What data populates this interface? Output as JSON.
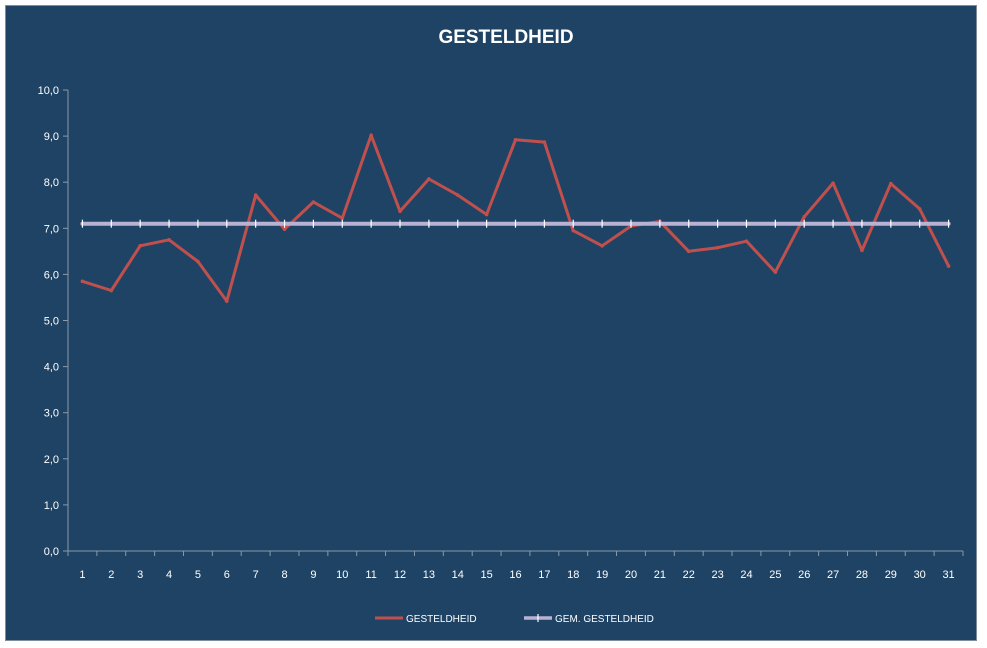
{
  "chart_data": {
    "type": "line",
    "title": "GESTELDHEID",
    "xlabel": "",
    "ylabel": "",
    "x": [
      1,
      2,
      3,
      4,
      5,
      6,
      7,
      8,
      9,
      10,
      11,
      12,
      13,
      14,
      15,
      16,
      17,
      18,
      19,
      20,
      21,
      22,
      23,
      24,
      25,
      26,
      27,
      28,
      29,
      30,
      31
    ],
    "ylim": [
      0,
      10
    ],
    "yticks": [
      "0,0",
      "1,0",
      "2,0",
      "3,0",
      "4,0",
      "5,0",
      "6,0",
      "7,0",
      "8,0",
      "9,0",
      "10,0"
    ],
    "grid": false,
    "legend_position": "bottom",
    "series": [
      {
        "name": "GESTELDHEID",
        "color": "#c0504d",
        "values": [
          5.85,
          5.65,
          6.62,
          6.75,
          6.28,
          5.42,
          7.72,
          6.98,
          7.57,
          7.22,
          9.02,
          7.37,
          8.07,
          7.72,
          7.3,
          8.92,
          8.87,
          6.95,
          6.62,
          7.05,
          7.15,
          6.5,
          6.58,
          6.72,
          6.05,
          7.25,
          7.98,
          6.52,
          7.97,
          7.42,
          6.18
        ]
      },
      {
        "name": "GEM. GESTELDHEID",
        "color": "#b9b2d4",
        "values": [
          7.1,
          7.1,
          7.1,
          7.1,
          7.1,
          7.1,
          7.1,
          7.1,
          7.1,
          7.1,
          7.1,
          7.1,
          7.1,
          7.1,
          7.1,
          7.1,
          7.1,
          7.1,
          7.1,
          7.1,
          7.1,
          7.1,
          7.1,
          7.1,
          7.1,
          7.1,
          7.1,
          7.1,
          7.1,
          7.1,
          7.1
        ]
      }
    ]
  }
}
